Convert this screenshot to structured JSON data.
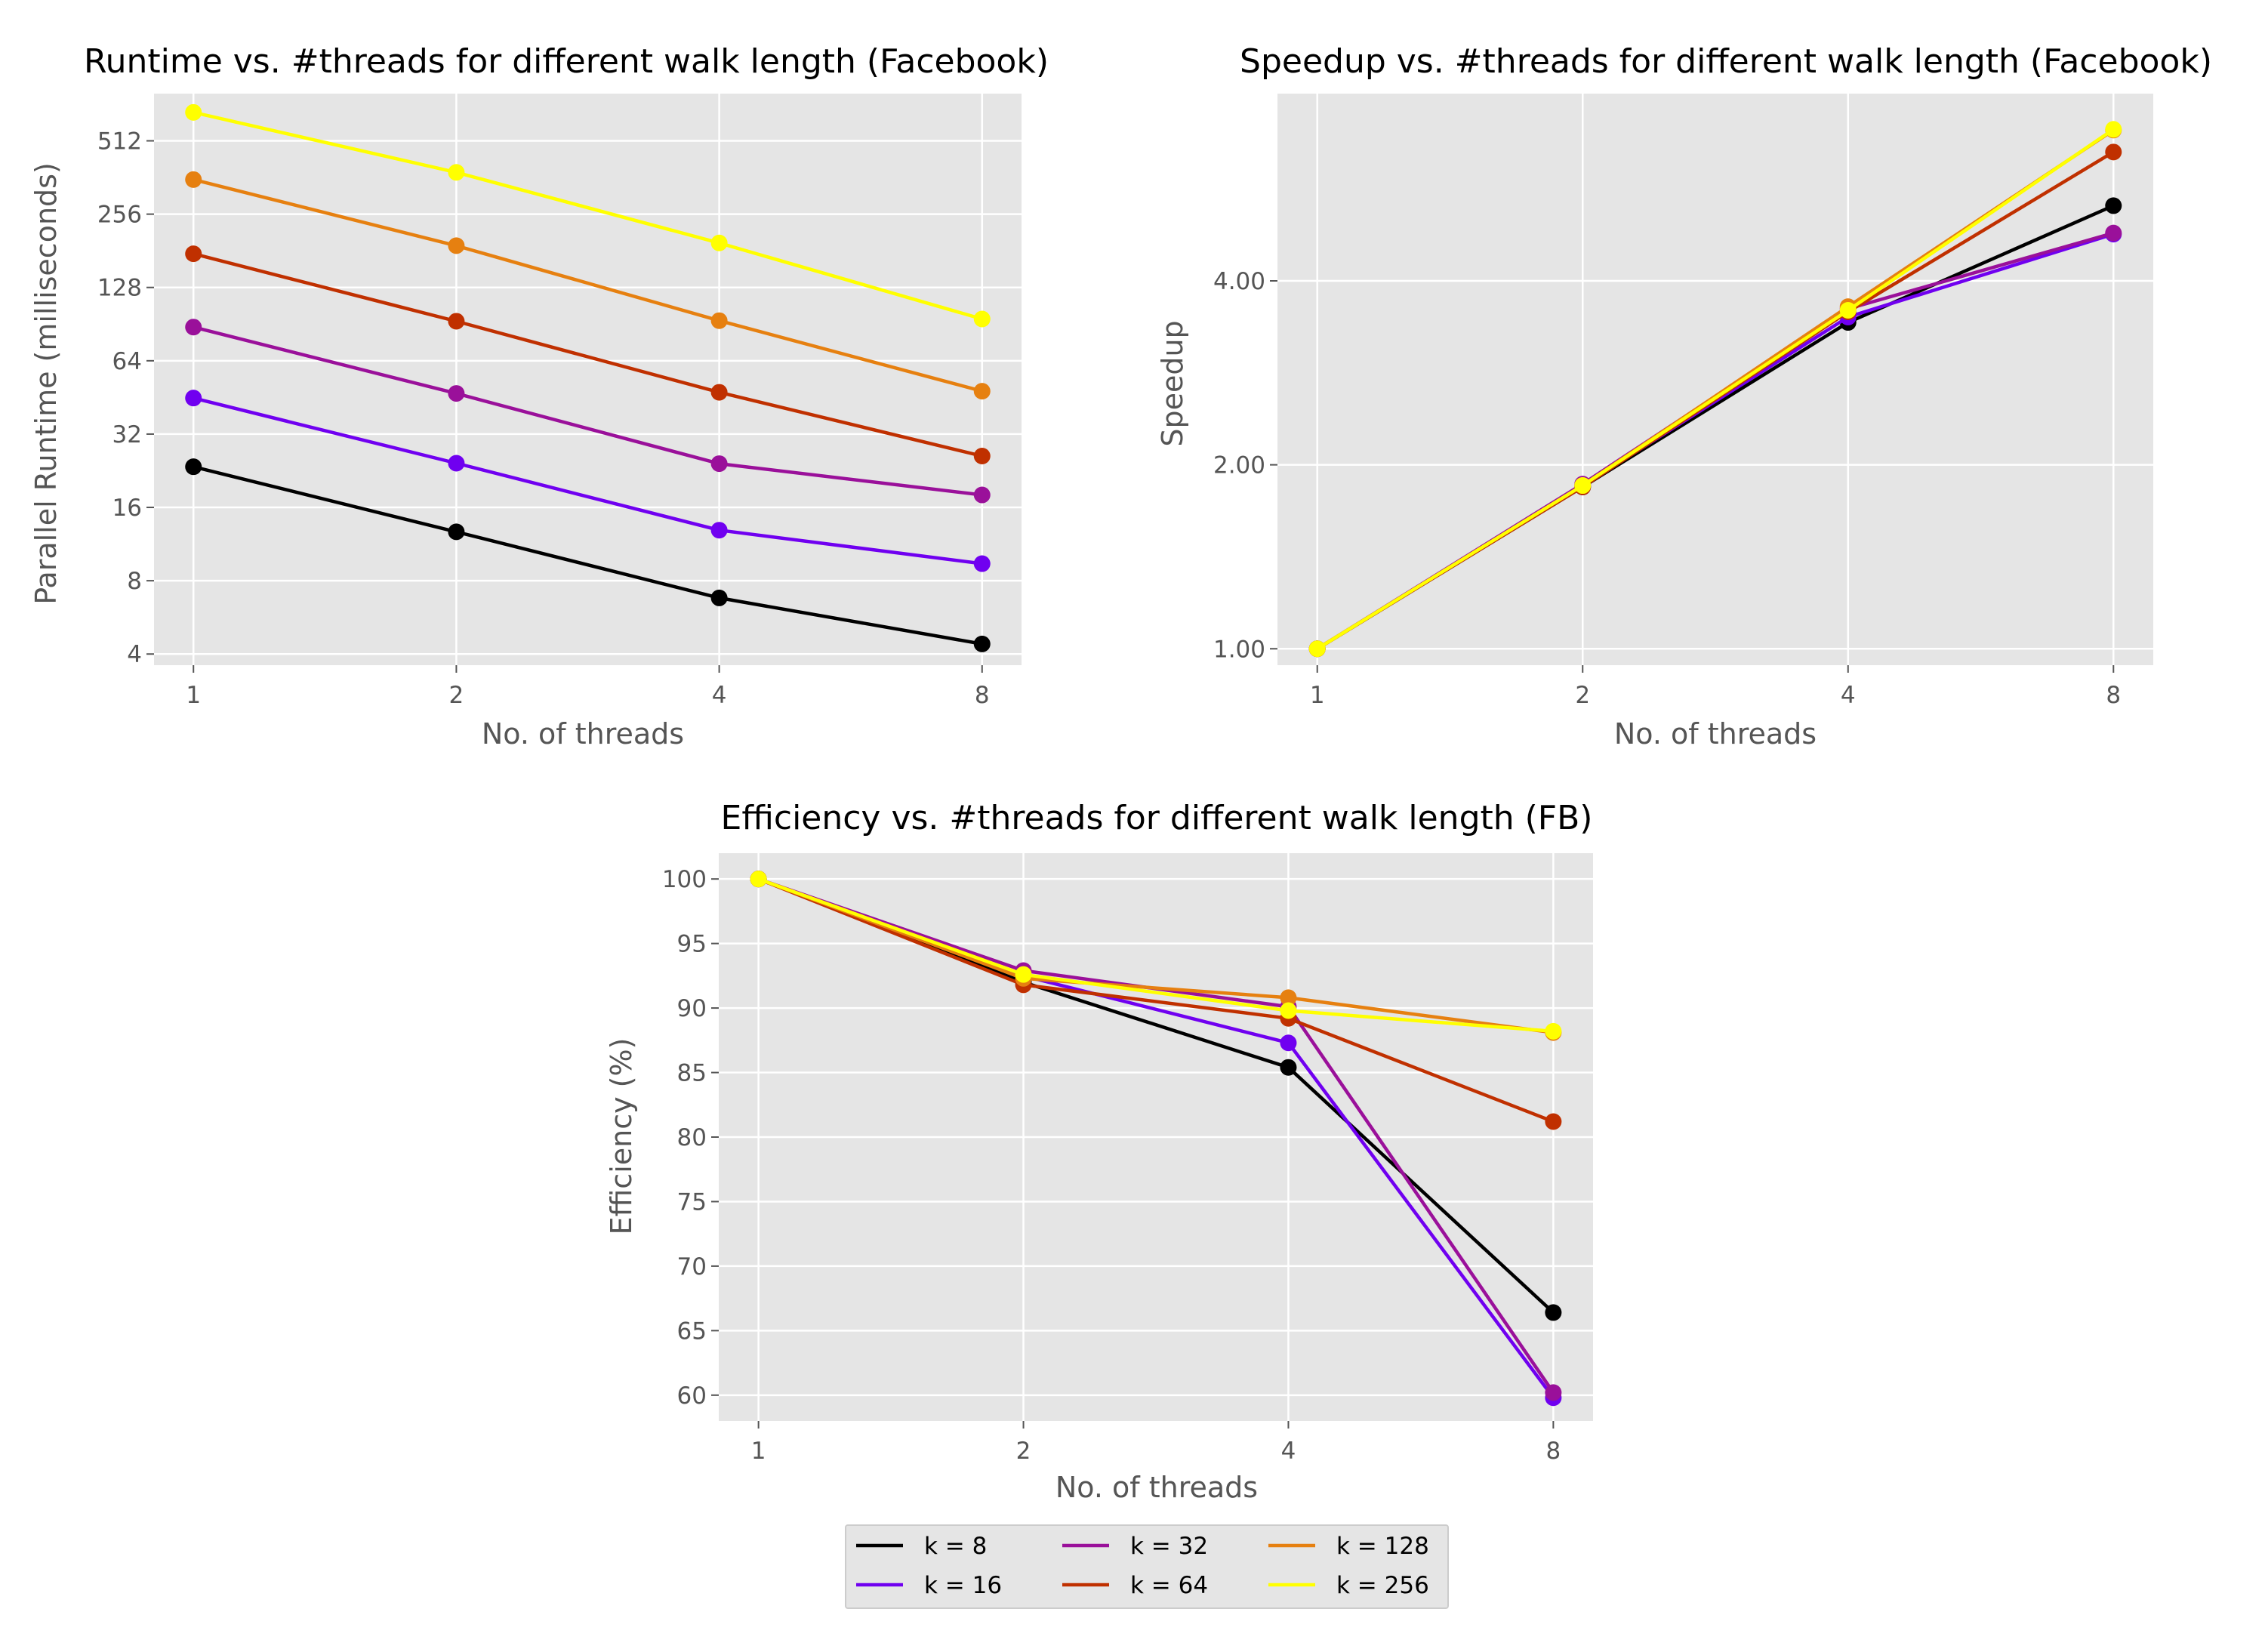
{
  "legend": {
    "entries": [
      "k = 8",
      "k = 16",
      "k = 32",
      "k = 64",
      "k = 128",
      "k = 256"
    ],
    "colors": [
      "#000000",
      "#7000f0",
      "#9a109a",
      "#c03000",
      "#e68010",
      "#ffff00"
    ]
  },
  "chart_data": [
    {
      "type": "line",
      "title": "Runtime vs. #threads for different walk length (Facebook)",
      "xlabel": "No. of threads",
      "ylabel": "Parallel Runtime (milliseconds)",
      "x": [
        1,
        2,
        4,
        8
      ],
      "x_tick_labels": [
        "1",
        "2",
        "4",
        "8"
      ],
      "y_scale": "log2",
      "y_ticks": [
        4,
        8,
        16,
        32,
        64,
        128,
        256,
        512
      ],
      "y_tick_labels": [
        "4",
        "8",
        "16",
        "32",
        "64",
        "128",
        "256",
        "512"
      ],
      "ylim": [
        3.6,
        800
      ],
      "grid": true,
      "series": [
        {
          "name": "k = 8",
          "color": "#000000",
          "values": [
            23.5,
            12.7,
            6.8,
            4.4
          ]
        },
        {
          "name": "k = 16",
          "color": "#7000f0",
          "values": [
            45.0,
            24.3,
            12.9,
            9.4
          ]
        },
        {
          "name": "k = 32",
          "color": "#9a109a",
          "values": [
            88.0,
            47.0,
            24.2,
            18.0
          ]
        },
        {
          "name": "k = 64",
          "color": "#c03000",
          "values": [
            176.0,
            93.0,
            47.5,
            26.0
          ]
        },
        {
          "name": "k = 128",
          "color": "#e68010",
          "values": [
            355.0,
            190.0,
            93.5,
            48.0
          ]
        },
        {
          "name": "k = 256",
          "color": "#ffff00",
          "values": [
            670.0,
            380.0,
            195.0,
            95.0
          ]
        }
      ]
    },
    {
      "type": "line",
      "title": "Speedup vs. #threads for different walk length (Facebook)",
      "xlabel": "No. of threads",
      "ylabel": "Speedup",
      "x": [
        1,
        2,
        4,
        8
      ],
      "x_tick_labels": [
        "1",
        "2",
        "4",
        "8"
      ],
      "y_scale": "log2",
      "y_ticks": [
        1,
        2,
        4
      ],
      "y_tick_labels": [
        "1.00",
        "2.00",
        "4.00"
      ],
      "ylim": [
        0.94,
        8.1
      ],
      "grid": true,
      "series": [
        {
          "name": "k = 8",
          "color": "#000000",
          "values": [
            1.0,
            1.84,
            3.42,
            5.31
          ]
        },
        {
          "name": "k = 16",
          "color": "#7000f0",
          "values": [
            1.0,
            1.85,
            3.49,
            4.77
          ]
        },
        {
          "name": "k = 32",
          "color": "#9a109a",
          "values": [
            1.0,
            1.86,
            3.6,
            4.79
          ]
        },
        {
          "name": "k = 64",
          "color": "#c03000",
          "values": [
            1.0,
            1.84,
            3.56,
            6.5
          ]
        },
        {
          "name": "k = 128",
          "color": "#e68010",
          "values": [
            1.0,
            1.85,
            3.63,
            7.06
          ]
        },
        {
          "name": "k = 256",
          "color": "#ffff00",
          "values": [
            1.0,
            1.85,
            3.58,
            7.08
          ]
        }
      ]
    },
    {
      "type": "line",
      "title": "Efficiency vs. #threads for different walk length (FB)",
      "xlabel": "No. of threads",
      "ylabel": "Efficiency (%)",
      "x": [
        1,
        2,
        4,
        8
      ],
      "x_tick_labels": [
        "1",
        "2",
        "4",
        "8"
      ],
      "y_scale": "linear",
      "y_ticks": [
        60,
        65,
        70,
        75,
        80,
        85,
        90,
        95,
        100
      ],
      "y_tick_labels": [
        "60",
        "65",
        "70",
        "75",
        "80",
        "85",
        "90",
        "95",
        "100"
      ],
      "ylim": [
        58,
        102
      ],
      "grid": true,
      "legend_position": "bottom-center",
      "series": [
        {
          "name": "k = 8",
          "color": "#000000",
          "values": [
            100,
            92.0,
            85.4,
            66.4
          ]
        },
        {
          "name": "k = 16",
          "color": "#7000f0",
          "values": [
            100,
            92.5,
            87.3,
            59.8
          ]
        },
        {
          "name": "k = 32",
          "color": "#9a109a",
          "values": [
            100,
            92.9,
            90.1,
            60.2
          ]
        },
        {
          "name": "k = 64",
          "color": "#c03000",
          "values": [
            100,
            91.8,
            89.2,
            81.2
          ]
        },
        {
          "name": "k = 128",
          "color": "#e68010",
          "values": [
            100,
            92.3,
            90.8,
            88.1
          ]
        },
        {
          "name": "k = 256",
          "color": "#ffff00",
          "values": [
            100,
            92.6,
            89.8,
            88.2
          ]
        }
      ]
    }
  ]
}
